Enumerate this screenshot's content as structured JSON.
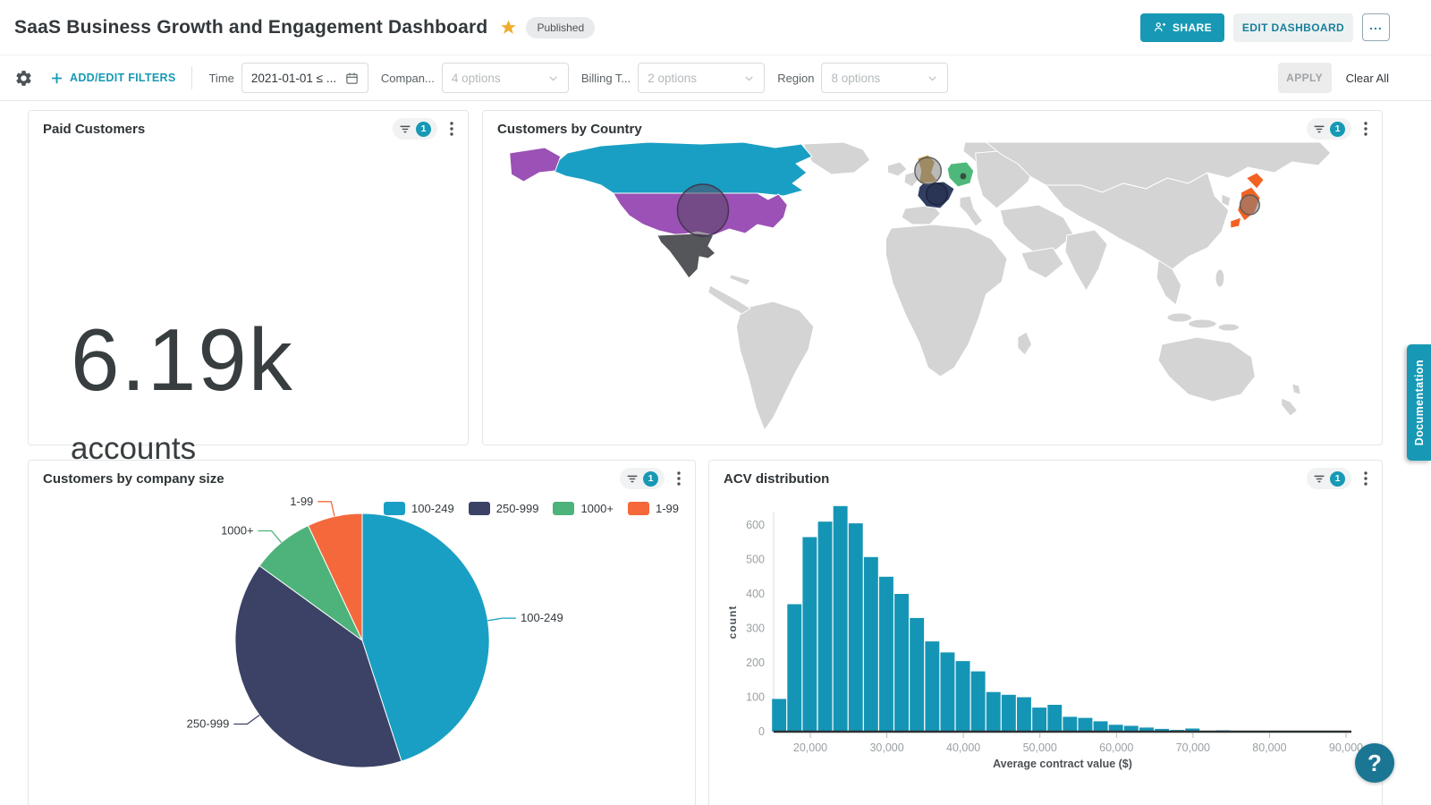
{
  "header": {
    "title": "SaaS Business Growth and Engagement Dashboard",
    "status_badge": "Published",
    "share_label": "SHARE",
    "edit_label": "EDIT DASHBOARD",
    "more_label": "..."
  },
  "filter_bar": {
    "add_edit_label": "ADD/EDIT FILTERS",
    "filters": [
      {
        "label": "Time",
        "value": "2021-01-01 ≤ ..."
      },
      {
        "label": "Compan...",
        "value": "4 options"
      },
      {
        "label": "Billing T...",
        "value": "2 options"
      },
      {
        "label": "Region",
        "value": "8 options"
      }
    ],
    "apply_label": "APPLY",
    "clear_label": "Clear All"
  },
  "widgets": {
    "paid_customers": {
      "title": "Paid Customers",
      "filter_count": "1",
      "value": "6.19k",
      "unit": "accounts"
    },
    "customers_by_country": {
      "title": "Customers by Country",
      "filter_count": "1"
    },
    "company_size": {
      "title": "Customers by company size",
      "filter_count": "1"
    },
    "acv": {
      "title": "ACV distribution",
      "filter_count": "1"
    }
  },
  "side": {
    "documentation_label": "Documentation",
    "help_label": "?"
  },
  "colors": {
    "accent": "#1799b5",
    "star": "#f0ad2d"
  },
  "chart_data": [
    {
      "type": "indicator",
      "title": "Paid Customers",
      "value": 6190,
      "display_value": "6.19k",
      "unit": "accounts"
    },
    {
      "type": "map",
      "title": "Customers by Country",
      "series": [
        {
          "id": "canada",
          "name": "Canada",
          "color": "#1a9fc4"
        },
        {
          "id": "usa",
          "name": "United States",
          "color": "#9b51b5",
          "bubble": "large"
        },
        {
          "id": "mexico",
          "name": "Mexico",
          "color": "#55565a"
        },
        {
          "id": "uk",
          "name": "United Kingdom",
          "color": "#c0983d",
          "bubble": "medium"
        },
        {
          "id": "france",
          "name": "France",
          "color": "#313e63",
          "bubble": "medium"
        },
        {
          "id": "germany",
          "name": "Germany",
          "color": "#4db87a",
          "bubble": "small"
        },
        {
          "id": "japan",
          "name": "Japan",
          "color": "#f26322",
          "bubble": "medium"
        }
      ]
    },
    {
      "type": "pie",
      "title": "Customers by company size",
      "categories": [
        "100-249",
        "250-999",
        "1000+",
        "1-99"
      ],
      "values_pct": [
        45,
        40,
        8,
        7
      ],
      "colors": [
        "#1a9fc4",
        "#3b4266",
        "#4db37a",
        "#f4683c"
      ],
      "legend_position": "top-right"
    },
    {
      "type": "bar",
      "title": "ACV distribution",
      "xlabel": "Average contract value ($)",
      "ylabel": "count",
      "bin_start": 15000,
      "bin_width": 2000,
      "values": [
        95,
        370,
        565,
        610,
        655,
        605,
        507,
        450,
        400,
        330,
        262,
        230,
        205,
        175,
        115,
        107,
        100,
        70,
        78,
        43,
        40,
        30,
        20,
        17,
        12,
        8,
        5,
        9,
        2,
        4
      ],
      "xticks": [
        20000,
        30000,
        40000,
        50000,
        60000,
        70000,
        80000,
        90000
      ],
      "yticks": [
        0,
        100,
        200,
        300,
        400,
        500,
        600
      ],
      "xlim": [
        15000,
        91000
      ],
      "ylim": [
        0,
        680
      ],
      "bar_color": "#1595b6",
      "grid": false
    }
  ]
}
